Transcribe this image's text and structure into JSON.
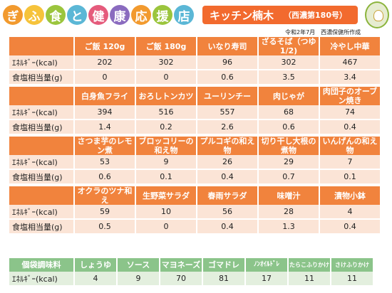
{
  "banner": {
    "chars": [
      "ぎ",
      "ふ",
      "食",
      "と",
      "健",
      "康",
      "応",
      "援",
      "店"
    ]
  },
  "header": {
    "shop_name": "キッチン楠木",
    "area": "（西濃第180号）"
  },
  "author": "令和2年7月　西濃保健所作成",
  "row_labels": {
    "energy": "ｴﾈﾙｷﾞｰ(kcal)",
    "salt": "食塩相当量(g)"
  },
  "blocks": [
    {
      "items": [
        "ご飯 120g",
        "ご飯 180g",
        "いなり寿司",
        "ざるそば（つゆ1/2)",
        "冷やし中華"
      ],
      "energy": [
        "202",
        "302",
        "96",
        "302",
        "467"
      ],
      "salt": [
        "0",
        "0",
        "0.6",
        "3.5",
        "3.4"
      ]
    },
    {
      "items": [
        "白身魚フライ",
        "おろしトンカツ",
        "ユーリンチー",
        "肉じゃが",
        "肉団子のオーブン焼き"
      ],
      "energy": [
        "394",
        "516",
        "557",
        "68",
        "74"
      ],
      "salt": [
        "1.4",
        "0.2",
        "2.6",
        "0.6",
        "0.4"
      ]
    },
    {
      "items": [
        "さつま芋のレモン煮",
        "ブロッコリーの和え物",
        "プルコギの和え物",
        "切り干し大根の煮物",
        "いんげんの和え物"
      ],
      "energy": [
        "53",
        "9",
        "26",
        "29",
        "7"
      ],
      "salt": [
        "0.6",
        "0.1",
        "0.4",
        "0.7",
        "0.1"
      ]
    },
    {
      "items": [
        "オクラのツナ和え",
        "生野菜サラダ",
        "春雨サラダ",
        "味噌汁",
        "漬物小鉢"
      ],
      "energy": [
        "59",
        "10",
        "56",
        "28",
        "4"
      ],
      "salt": [
        "0.5",
        "0",
        "0.4",
        "1.3",
        "0.4"
      ]
    }
  ],
  "seasonings": {
    "title": "個袋調味料",
    "items": [
      "しょうゆ",
      "ソース",
      "マヨネーズ",
      "ゴマドレ",
      "ﾉﾝｵｲﾙﾄﾞﾚ",
      "たらこふりかけ",
      "さけふりかけ"
    ],
    "energy": [
      "4",
      "9",
      "70",
      "81",
      "17",
      "11",
      "11"
    ]
  }
}
